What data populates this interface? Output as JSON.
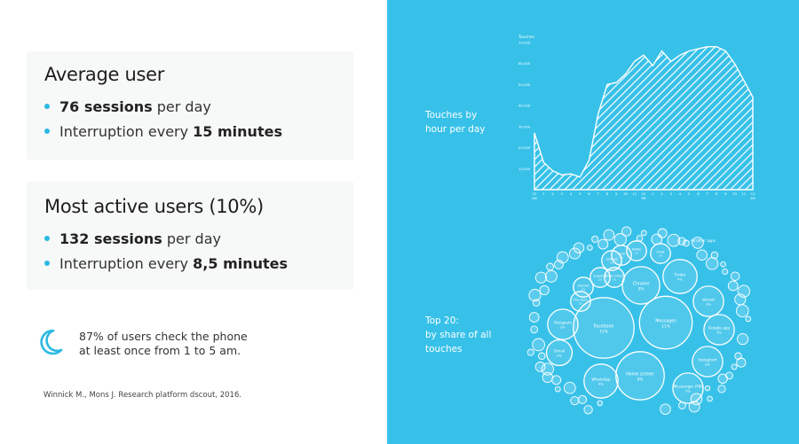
{
  "left_panel": {
    "average_user": {
      "heading": "Average user",
      "bullet1": {
        "bold": "76 sessions",
        "rest": " per day"
      },
      "bullet2": {
        "text": "Interruption every ",
        "bold": "15 minutes"
      }
    },
    "active_users": {
      "heading": "Most active users (10%)",
      "bullet1": {
        "bold": "132 sessions",
        "rest": " per day"
      },
      "bullet2": {
        "text": "Interruption every ",
        "bold": "8,5 minutes"
      }
    },
    "night_note": {
      "icon": "moon-icon",
      "line1": "87% of users check the phone",
      "line2": "at least once from  1 to 5 am."
    },
    "source": "Winnick M., Mons J. Research platform dscout, 2016."
  },
  "right_panel": {
    "touches_label": {
      "line1": "Touches by",
      "line2": "hour per day"
    },
    "top20_label": {
      "line1": "Top 20:",
      "line2": "by share of all",
      "line3": "touches"
    }
  },
  "colors": {
    "panel_bg": "#37c1e9",
    "accent": "#2cb8e3",
    "card_bg": "#f7f8f8",
    "chart_line": "#ffffff"
  },
  "chart_data": [
    {
      "type": "area",
      "title": "Touches by hour per day",
      "ylabel": "Touches",
      "ylim": [
        0,
        70000
      ],
      "yticks": [
        0,
        10000,
        20000,
        30000,
        40000,
        50000,
        60000,
        70000
      ],
      "x": [
        "12",
        "1",
        "2",
        "3",
        "4",
        "5",
        "6",
        "7",
        "8",
        "9",
        "10",
        "11",
        "12",
        "1",
        "2",
        "3",
        "4",
        "5",
        "6",
        "7",
        "8",
        "9",
        "10",
        "11",
        "12"
      ],
      "x_sublabels": {
        "0": "AM",
        "12": "PM",
        "24": "AM"
      },
      "values": [
        27000,
        13000,
        9000,
        7000,
        7500,
        6000,
        14000,
        36000,
        50000,
        51000,
        55000,
        61000,
        64000,
        59000,
        66000,
        61000,
        64000,
        66000,
        67000,
        68000,
        68000,
        66000,
        60000,
        52000,
        44000
      ],
      "pattern": "diagonal hatch",
      "grid": false
    },
    {
      "type": "bubble",
      "title": "Top 20: by share of all touches",
      "items": [
        {
          "name": "Facebook",
          "value": 15
        },
        {
          "name": "Messages",
          "value": 11
        },
        {
          "name": "Home screen",
          "value": 9
        },
        {
          "name": "Chrome",
          "value": 5
        },
        {
          "name": "WhatsApp",
          "value": 4
        },
        {
          "name": "Tinder",
          "value": 4
        },
        {
          "name": "Hangouts",
          "value": 3
        },
        {
          "name": "Google app",
          "value": 3
        },
        {
          "name": "Instagram",
          "value": 3
        },
        {
          "name": "dscout",
          "value": 3
        },
        {
          "name": "Messenger (FB)",
          "value": 3
        },
        {
          "name": "Gmail",
          "value": 2
        },
        {
          "name": "Twitter",
          "value": 1
        },
        {
          "name": "Email",
          "value": 1
        },
        {
          "name": "Internet",
          "value": 1
        },
        {
          "name": "Snapchat",
          "value": 1
        },
        {
          "name": "Email (other)",
          "value": 1
        },
        {
          "name": "Play Store",
          "value": 1
        },
        {
          "name": "Clock",
          "value": 1
        },
        {
          "name": "Settings",
          "value": 1
        }
      ],
      "others_label": "All other apps"
    }
  ]
}
